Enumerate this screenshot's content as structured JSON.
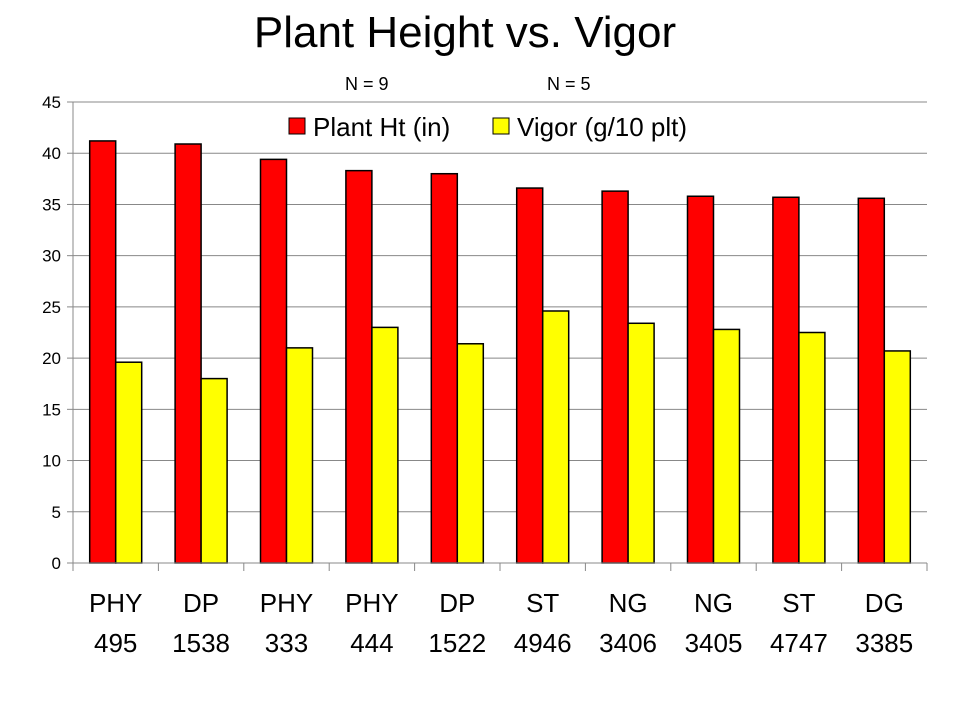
{
  "chart_data": {
    "type": "bar",
    "title": "Plant Height vs. Vigor",
    "annotations": [
      "N = 9",
      "N = 5"
    ],
    "categories": [
      [
        "PHY",
        "495"
      ],
      [
        "DP",
        "1538"
      ],
      [
        "PHY",
        "333"
      ],
      [
        "PHY",
        "444"
      ],
      [
        "DP",
        "1522"
      ],
      [
        "ST",
        "4946"
      ],
      [
        "NG",
        "3406"
      ],
      [
        "NG",
        "3405"
      ],
      [
        "ST",
        "4747"
      ],
      [
        "DG",
        "3385"
      ]
    ],
    "series": [
      {
        "name": "Plant Ht (in)",
        "color": "#ff0000",
        "values": [
          41.2,
          40.9,
          39.4,
          38.3,
          38.0,
          36.6,
          36.3,
          35.8,
          35.7,
          35.6
        ]
      },
      {
        "name": "Vigor (g/10 plt)",
        "color": "#ffff00",
        "values": [
          19.6,
          18.0,
          21.0,
          23.0,
          21.4,
          24.6,
          23.4,
          22.8,
          22.5,
          20.7
        ]
      }
    ],
    "ylim": [
      0,
      45
    ],
    "yticks": [
      0,
      5,
      10,
      15,
      20,
      25,
      30,
      35,
      40,
      45
    ],
    "grid": true,
    "legend_position": "top-right"
  }
}
